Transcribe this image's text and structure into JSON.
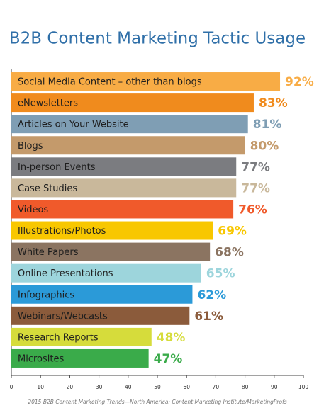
{
  "chart_data": {
    "type": "bar",
    "orientation": "horizontal",
    "title": "B2B Content Marketing Tactic Usage",
    "categories": [
      "Social Media Content – other than blogs",
      "eNewsletters",
      "Articles on Your Website",
      "Blogs",
      "In-person Events",
      "Case Studies",
      "Videos",
      "Illustrations/Photos",
      "White Papers",
      "Online Presentations",
      "Infographics",
      "Webinars/Webcasts",
      "Research Reports",
      "Microsites"
    ],
    "values": [
      92,
      83,
      81,
      80,
      77,
      77,
      76,
      69,
      68,
      65,
      62,
      61,
      48,
      47
    ],
    "value_labels": [
      "92%",
      "83%",
      "81%",
      "80%",
      "77%",
      "77%",
      "76%",
      "69%",
      "68%",
      "65%",
      "62%",
      "61%",
      "48%",
      "47%"
    ],
    "colors": [
      "#f8ac45",
      "#f08b1d",
      "#7f9eb4",
      "#c49a6b",
      "#7b7c80",
      "#c9b89b",
      "#f05a2b",
      "#f8c700",
      "#8b7461",
      "#9dd5dc",
      "#2b9ad8",
      "#8b5b3b",
      "#d6dc3b",
      "#3aab4a"
    ],
    "xlim": [
      0,
      100
    ],
    "xticks": [
      0,
      10,
      20,
      30,
      40,
      50,
      60,
      70,
      80,
      90,
      100
    ],
    "source": "2015 B2B Content Marketing Trends—North America: Content Marketing Institute/MarketingProfs"
  }
}
